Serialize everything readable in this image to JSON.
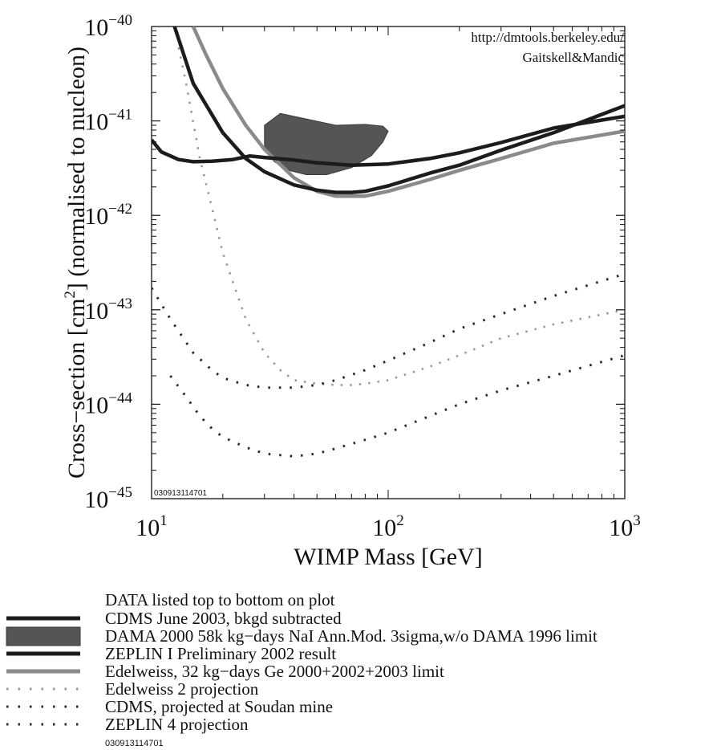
{
  "chart_data": {
    "type": "line",
    "xscale": "log",
    "yscale": "log",
    "xlim": [
      10,
      1000
    ],
    "ylim": [
      1e-45,
      1e-40
    ],
    "xlabel": "WIMP Mass [GeV]",
    "ylabel_pre": "Cross−section [cm",
    "ylabel_sup": "2",
    "ylabel_post": "] (normalised to nucleon)",
    "x_ticks": [
      {
        "value": 10,
        "base": "10",
        "exp": "1"
      },
      {
        "value": 100,
        "base": "10",
        "exp": "2"
      },
      {
        "value": 1000,
        "base": "10",
        "exp": "3"
      }
    ],
    "y_ticks": [
      {
        "value": 1e-40,
        "base": "10",
        "exp": "−40"
      },
      {
        "value": 1e-41,
        "base": "10",
        "exp": "−41"
      },
      {
        "value": 1e-42,
        "base": "10",
        "exp": "−42"
      },
      {
        "value": 1e-43,
        "base": "10",
        "exp": "−43"
      },
      {
        "value": 1e-44,
        "base": "10",
        "exp": "−44"
      },
      {
        "value": 1e-45,
        "base": "10",
        "exp": "−45"
      }
    ],
    "grid": false,
    "annotations": [
      "http://dmtools.berkeley.edu/",
      "Gaitskell&Mandic"
    ],
    "stamp": "030913114701",
    "legend_title": "DATA listed top to bottom on plot",
    "legend_stamp": "030913114701",
    "series": [
      {
        "name": "CDMS June 2003, bkgd subtracted",
        "style": "solid-thick",
        "color": "#1c1c1c",
        "x": [
          12.5,
          15,
          20,
          25,
          30,
          40,
          50,
          60,
          70,
          80,
          100,
          150,
          200,
          300,
          500,
          1000
        ],
        "y": [
          1e-40,
          2.5e-41,
          7.5e-42,
          4e-42,
          2.9e-42,
          2.1e-42,
          1.85e-42,
          1.75e-42,
          1.75e-42,
          1.8e-42,
          2.05e-42,
          2.8e-42,
          3.4e-42,
          4.9e-42,
          7.5e-42,
          1.45e-41
        ]
      },
      {
        "name": "DAMA 2000 58k kg−days NaI Ann.Mod. 3sigma,w/o DAMA 1996 limit",
        "style": "filled-region",
        "color": "#555555",
        "x": [
          30,
          35,
          45,
          60,
          80,
          95,
          100,
          95,
          85,
          70,
          55,
          45,
          38,
          33,
          30
        ],
        "y": [
          9e-42,
          1.2e-41,
          1.05e-41,
          9e-42,
          9.2e-42,
          8.8e-42,
          7.8e-42,
          6e-42,
          4.3e-42,
          3.2e-42,
          2.7e-42,
          2.7e-42,
          3e-42,
          3.7e-42,
          5e-42
        ]
      },
      {
        "name": "ZEPLIN I Preliminary 2002 result",
        "style": "solid-thick",
        "color": "#1c1c1c",
        "x": [
          10,
          11,
          13,
          15,
          18,
          22,
          26,
          30,
          40,
          50,
          70,
          100,
          150,
          200,
          300,
          500,
          1000
        ],
        "y": [
          6.3e-42,
          4.7e-42,
          3.9e-42,
          3.7e-42,
          3.75e-42,
          3.9e-42,
          4.25e-42,
          4.1e-42,
          3.85e-42,
          3.6e-42,
          3.4e-42,
          3.5e-42,
          4e-42,
          4.6e-42,
          5.9e-42,
          8.4e-42,
          1.12e-41
        ]
      },
      {
        "name": "Edelweiss, 32 kg−days Ge 2000+2002+2003 limit",
        "style": "solid-gray",
        "color": "#8a8a8a",
        "x": [
          15,
          17,
          20,
          25,
          30,
          40,
          50,
          60,
          80,
          100,
          150,
          200,
          300,
          500,
          1000
        ],
        "y": [
          1e-40,
          5e-41,
          2.2e-41,
          9e-42,
          5e-42,
          2.5e-42,
          1.8e-42,
          1.6e-42,
          1.6e-42,
          1.8e-42,
          2.4e-42,
          3e-42,
          4e-42,
          5.8e-42,
          7.8e-42
        ]
      },
      {
        "name": "Edelweiss 2 projection",
        "style": "dotted-gray",
        "color": "#999999",
        "x": [
          13,
          14,
          16,
          18,
          20,
          25,
          30,
          35,
          40,
          50,
          60,
          70,
          80,
          100,
          150,
          200,
          300,
          500,
          1000
        ],
        "y": [
          6e-41,
          2.5e-41,
          4e-42,
          1.2e-42,
          4e-43,
          8e-44,
          3.5e-44,
          2.3e-44,
          1.8e-44,
          1.65e-44,
          1.6e-44,
          1.6e-44,
          1.65e-44,
          1.8e-44,
          2.5e-44,
          3.3e-44,
          5e-44,
          7e-44,
          1e-43
        ]
      },
      {
        "name": "CDMS, projected at Soudan mine",
        "style": "dotted-dark",
        "color": "#2a2a2a",
        "x": [
          10,
          12,
          15,
          18,
          20,
          25,
          30,
          40,
          50,
          60,
          80,
          100,
          150,
          200,
          300,
          500,
          1000
        ],
        "y": [
          1.7e-43,
          8e-44,
          3.5e-44,
          2.3e-44,
          1.9e-44,
          1.6e-44,
          1.5e-44,
          1.5e-44,
          1.6e-44,
          1.8e-44,
          2.3e-44,
          2.9e-44,
          4.5e-44,
          6.3e-44,
          9e-44,
          1.4e-43,
          2.4e-43
        ]
      },
      {
        "name": "ZEPLIN 4 projection",
        "style": "dotted-dark",
        "color": "#2a2a2a",
        "x": [
          12,
          14,
          16,
          18,
          20,
          25,
          30,
          40,
          50,
          60,
          80,
          100,
          150,
          200,
          300,
          500,
          1000
        ],
        "y": [
          2e-44,
          1.2e-44,
          7.5e-45,
          5.5e-45,
          4.5e-45,
          3.5e-45,
          3e-45,
          2.8e-45,
          3e-45,
          3.4e-45,
          4.2e-45,
          5e-45,
          7.5e-45,
          1e-44,
          1.4e-44,
          2e-44,
          3.3e-44
        ]
      }
    ]
  }
}
